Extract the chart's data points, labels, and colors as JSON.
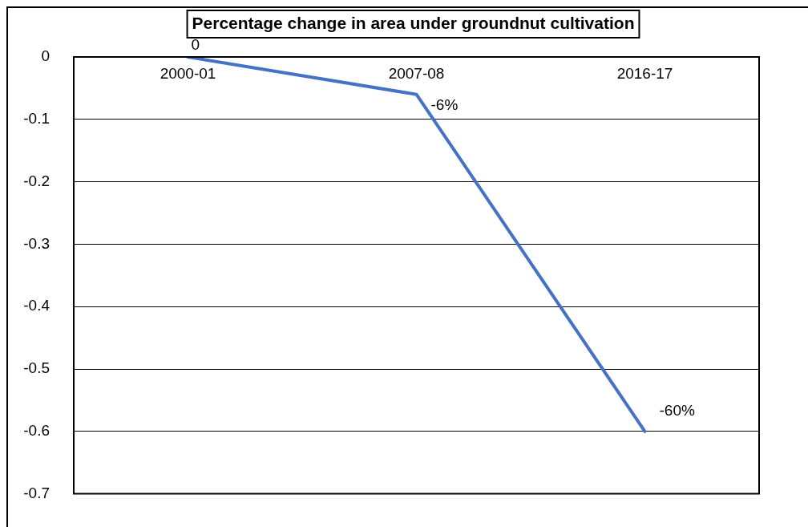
{
  "chart_data": {
    "type": "line",
    "title": "Percentage change in area under groundnut cultivation",
    "categories": [
      "2000-01",
      "2007-08",
      "2016-17"
    ],
    "values": [
      0,
      -0.06,
      -0.6
    ],
    "color": "#4472c4",
    "value_labels": [
      "0",
      "-6%",
      "-60%"
    ],
    "ylim": [
      -0.7,
      0
    ],
    "yticks": [
      0,
      -0.1,
      -0.2,
      -0.3,
      -0.4,
      -0.5,
      -0.6,
      -0.7
    ],
    "grid": "y",
    "legend": false,
    "marker": "none",
    "line_style": "solid"
  }
}
